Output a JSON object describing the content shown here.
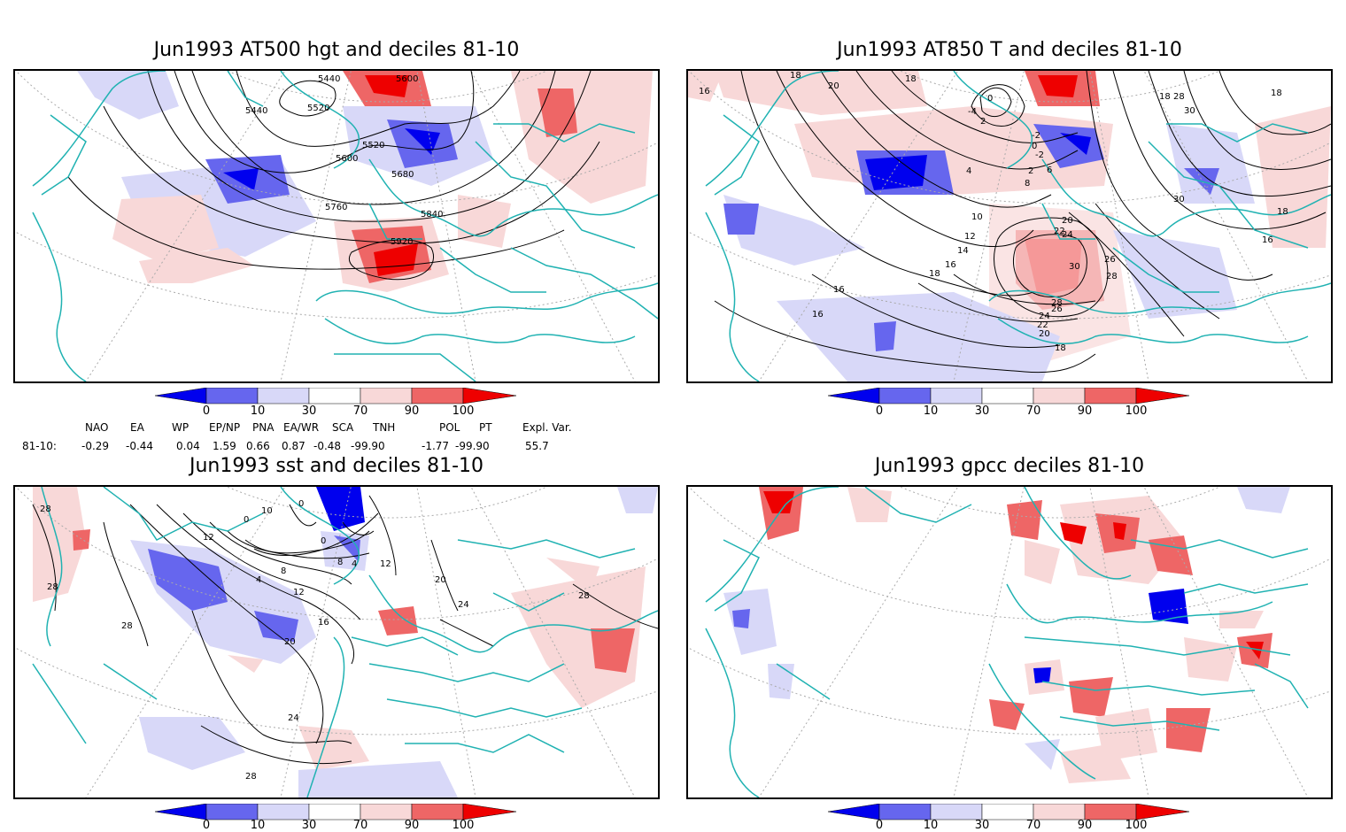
{
  "panels": [
    {
      "title": "Jun1993 AT500 hgt and deciles 81-10",
      "contour_labels": [
        "5440",
        "5600",
        "5440",
        "5520",
        "5520",
        "5600",
        "5680",
        "5760",
        "5840",
        "5920"
      ]
    },
    {
      "title": "Jun1993 AT850 T and deciles 81-10",
      "contour_labels": [
        "16",
        "18",
        "20",
        "18",
        "0",
        "-4",
        "2",
        "-2",
        "0",
        "-2",
        "2",
        "4",
        "6",
        "8",
        "10",
        "12",
        "14",
        "16",
        "18",
        "18",
        "28",
        "30",
        "18",
        "30",
        "18",
        "16",
        "20",
        "22",
        "24",
        "26",
        "28",
        "30",
        "28",
        "26",
        "24",
        "22",
        "20",
        "18",
        "16",
        "16"
      ]
    },
    {
      "title": "Jun1993 sst and deciles 81-10",
      "contour_labels": [
        "28",
        "28",
        "28",
        "12",
        "10",
        "0",
        "0",
        "0",
        "4",
        "8",
        "12",
        "4",
        "8",
        "12",
        "16",
        "20",
        "20",
        "24",
        "24",
        "28",
        "28"
      ]
    },
    {
      "title": "Jun1993 gpcc deciles 81-10",
      "contour_labels": []
    }
  ],
  "colorbar": {
    "ticks": [
      "0",
      "10",
      "30",
      "70",
      "90",
      "100"
    ],
    "colors": [
      "#0000ee",
      "#6666ee",
      "#d8d8f8",
      "#ffffff",
      "#f8d8d8",
      "#ee6666",
      "#ee0000"
    ]
  },
  "indices": {
    "headers": [
      "NAO",
      "EA",
      "WP",
      "EP/NP",
      "PNA",
      "EA/WR",
      "SCA",
      "TNH",
      "POL",
      "PT",
      "Expl. Var."
    ],
    "row_label": "81-10:",
    "values": [
      "-0.29",
      "-0.44",
      "0.04",
      "1.59",
      "0.66",
      "0.87",
      "-0.48",
      "-99.90",
      "-1.77",
      "-99.90",
      "55.7"
    ]
  },
  "colors": {
    "coast": "#20b2b2",
    "grid": "#aaaaaa",
    "contour": "#000000"
  }
}
